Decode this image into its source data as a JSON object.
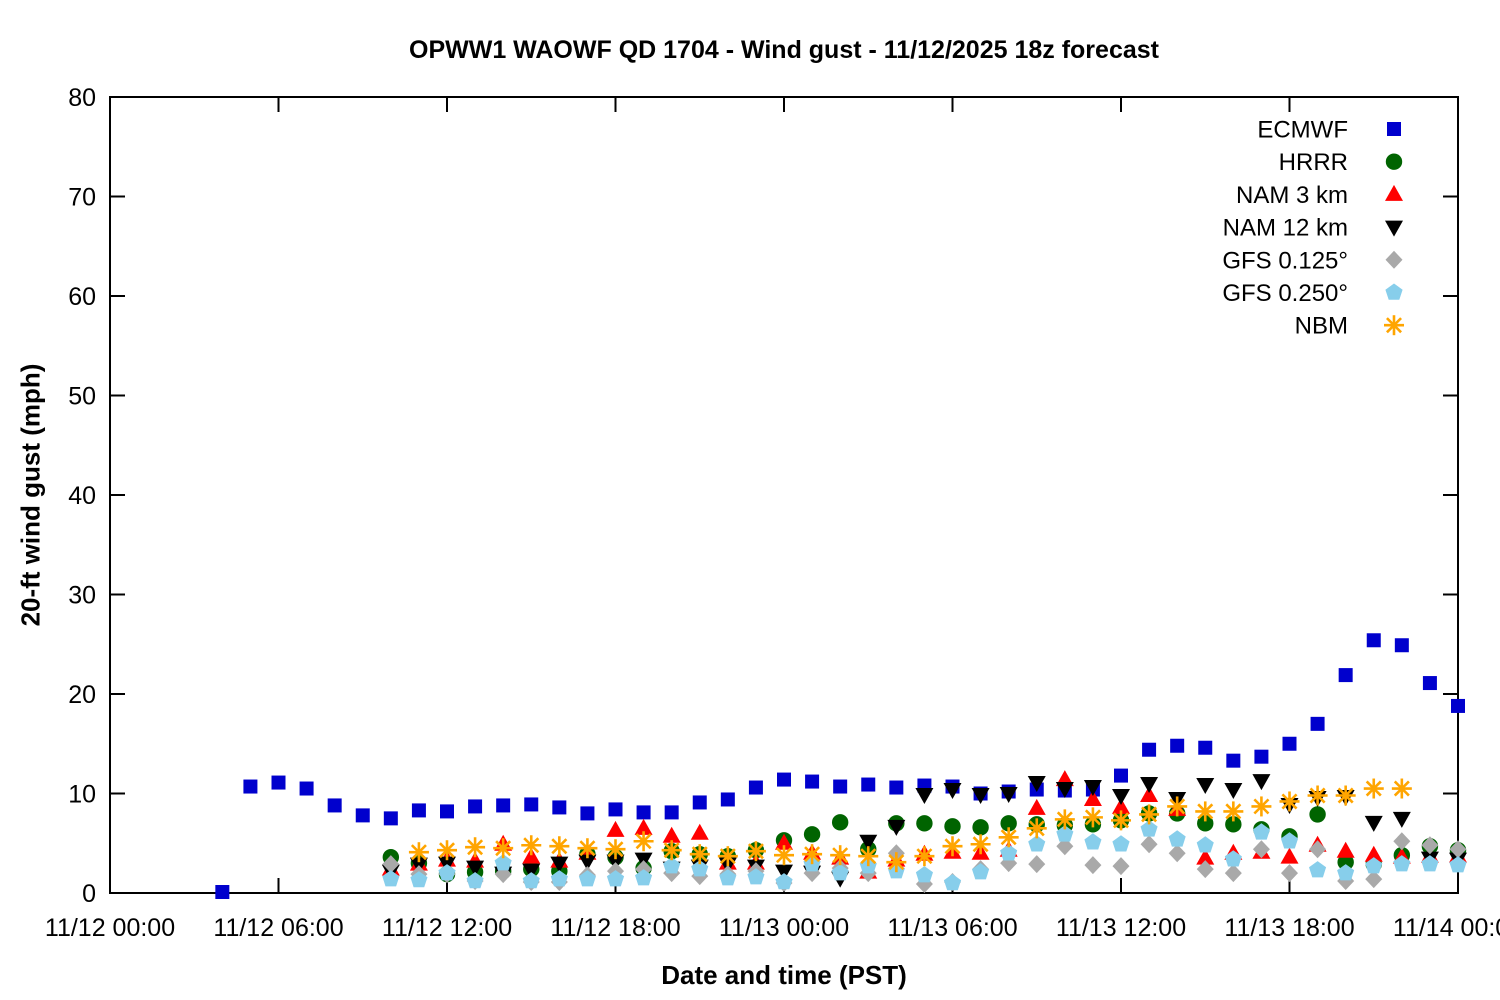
{
  "page": {
    "title": "OPWW1 WAOWF QD 1704 - Wind gust - 11/12/2025 18z forecast"
  },
  "chart_data": {
    "type": "scatter",
    "title": "OPWW1 WAOWF QD 1704 - Wind gust - 11/12/2025 18z forecast",
    "xlabel": "Date and time (PST)",
    "ylabel": "20-ft wind gust (mph)",
    "grid": false,
    "legend": {
      "position": "top-right-inside"
    },
    "x_axis": {
      "unit": "hours after 11/12 00:00 PST",
      "start_hour": 0,
      "end_hour": 48,
      "tick_interval_hours": 6,
      "tick_labels": [
        "11/12 00:00",
        "11/12 06:00",
        "11/12 12:00",
        "11/12 18:00",
        "11/13 00:00",
        "11/13 06:00",
        "11/13 12:00",
        "11/13 18:00",
        "11/14 00:00"
      ]
    },
    "y_axis": {
      "min": 0,
      "max": 80,
      "tick_step": 10,
      "tick_labels": [
        "0",
        "10",
        "20",
        "30",
        "40",
        "50",
        "60",
        "70",
        "80"
      ]
    },
    "series": [
      {
        "name": "ECMWF",
        "marker": "square",
        "color": "#0000cd",
        "points": [
          [
            4,
            0.1
          ],
          [
            5,
            10.7
          ],
          [
            6,
            11.1
          ],
          [
            7,
            10.5
          ],
          [
            8,
            8.8
          ],
          [
            9,
            7.8
          ],
          [
            10,
            7.5
          ],
          [
            11,
            8.3
          ],
          [
            12,
            8.2
          ],
          [
            13,
            8.7
          ],
          [
            14,
            8.8
          ],
          [
            15,
            8.9
          ],
          [
            16,
            8.6
          ],
          [
            17,
            8.0
          ],
          [
            18,
            8.4
          ],
          [
            19,
            8.1
          ],
          [
            20,
            8.1
          ],
          [
            21,
            9.1
          ],
          [
            22,
            9.4
          ],
          [
            23,
            10.6
          ],
          [
            24,
            11.4
          ],
          [
            25,
            11.2
          ],
          [
            26,
            10.7
          ],
          [
            27,
            10.9
          ],
          [
            28,
            10.6
          ],
          [
            29,
            10.8
          ],
          [
            30,
            10.7
          ],
          [
            31,
            10.0
          ],
          [
            32,
            10.2
          ],
          [
            33,
            10.4
          ],
          [
            34,
            10.3
          ],
          [
            35,
            10.4
          ],
          [
            36,
            11.8
          ],
          [
            37,
            14.4
          ],
          [
            38,
            14.8
          ],
          [
            39,
            14.6
          ],
          [
            40,
            13.3
          ],
          [
            41,
            13.7
          ],
          [
            42,
            15.0
          ],
          [
            43,
            17.0
          ],
          [
            44,
            21.9
          ],
          [
            45,
            25.4
          ],
          [
            46,
            24.9
          ],
          [
            47,
            21.1
          ],
          [
            48,
            18.8
          ]
        ]
      },
      {
        "name": "HRRR",
        "marker": "circle",
        "color": "#006400",
        "points": [
          [
            10,
            3.6
          ],
          [
            11,
            3.0
          ],
          [
            12,
            1.9
          ],
          [
            13,
            2.1
          ],
          [
            14,
            2.2
          ],
          [
            15,
            2.4
          ],
          [
            16,
            2.2
          ],
          [
            17,
            3.9
          ],
          [
            18,
            3.6
          ],
          [
            19,
            2.5
          ],
          [
            20,
            4.2
          ],
          [
            21,
            3.9
          ],
          [
            22,
            3.7
          ],
          [
            23,
            4.3
          ],
          [
            24,
            5.3
          ],
          [
            25,
            5.9
          ],
          [
            26,
            7.1
          ],
          [
            27,
            4.4
          ],
          [
            28,
            7.0
          ],
          [
            29,
            7.0
          ],
          [
            30,
            6.7
          ],
          [
            31,
            6.6
          ],
          [
            32,
            7.0
          ],
          [
            33,
            6.9
          ],
          [
            34,
            6.8
          ],
          [
            35,
            6.9
          ],
          [
            36,
            7.3
          ],
          [
            37,
            8.0
          ],
          [
            38,
            8.0
          ],
          [
            39,
            7.0
          ],
          [
            40,
            6.9
          ],
          [
            41,
            6.4
          ],
          [
            42,
            5.7
          ],
          [
            43,
            7.9
          ],
          [
            44,
            3.1
          ],
          [
            45,
            2.9
          ],
          [
            46,
            3.8
          ],
          [
            47,
            4.7
          ],
          [
            48,
            4.3
          ]
        ]
      },
      {
        "name": "NAM 3 km",
        "marker": "triangle-up",
        "color": "#ff0000",
        "points": [
          [
            10,
            2.4
          ],
          [
            11,
            2.9
          ],
          [
            12,
            3.3
          ],
          [
            13,
            3.2
          ],
          [
            14,
            4.9
          ],
          [
            15,
            3.6
          ],
          [
            16,
            3.2
          ],
          [
            17,
            4.0
          ],
          [
            18,
            6.3
          ],
          [
            19,
            6.5
          ],
          [
            20,
            5.7
          ],
          [
            21,
            6.0
          ],
          [
            22,
            3.0
          ],
          [
            23,
            3.0
          ],
          [
            24,
            5.0
          ],
          [
            25,
            4.0
          ],
          [
            26,
            3.5
          ],
          [
            27,
            2.1
          ],
          [
            28,
            3.3
          ],
          [
            29,
            3.9
          ],
          [
            30,
            4.1
          ],
          [
            31,
            4.0
          ],
          [
            32,
            4.3
          ],
          [
            33,
            8.5
          ],
          [
            34,
            11.4
          ],
          [
            35,
            9.4
          ],
          [
            36,
            8.6
          ],
          [
            37,
            9.8
          ],
          [
            38,
            8.4
          ],
          [
            39,
            3.5
          ],
          [
            40,
            4.0
          ],
          [
            41,
            4.1
          ],
          [
            42,
            3.6
          ],
          [
            43,
            4.8
          ],
          [
            44,
            4.2
          ],
          [
            45,
            3.8
          ],
          [
            46,
            3.6
          ],
          [
            47,
            3.7
          ],
          [
            48,
            3.7
          ]
        ]
      },
      {
        "name": "NAM 12 km",
        "marker": "triangle-down",
        "color": "#000000",
        "points": [
          [
            10,
            2.2
          ],
          [
            11,
            2.9
          ],
          [
            12,
            3.0
          ],
          [
            13,
            2.6
          ],
          [
            14,
            2.0
          ],
          [
            15,
            2.3
          ],
          [
            16,
            3.0
          ],
          [
            17,
            3.2
          ],
          [
            18,
            3.2
          ],
          [
            19,
            3.4
          ],
          [
            20,
            2.5
          ],
          [
            21,
            2.7
          ],
          [
            22,
            2.9
          ],
          [
            23,
            2.7
          ],
          [
            24,
            2.2
          ],
          [
            25,
            2.1
          ],
          [
            26,
            1.5
          ],
          [
            27,
            5.2
          ],
          [
            28,
            6.7
          ],
          [
            29,
            9.9
          ],
          [
            30,
            10.4
          ],
          [
            31,
            9.9
          ],
          [
            32,
            10.0
          ],
          [
            33,
            11.1
          ],
          [
            34,
            10.5
          ],
          [
            35,
            10.7
          ],
          [
            36,
            9.8
          ],
          [
            37,
            11.0
          ],
          [
            38,
            9.5
          ],
          [
            39,
            10.9
          ],
          [
            40,
            10.4
          ],
          [
            41,
            11.3
          ],
          [
            42,
            8.9
          ],
          [
            43,
            9.6
          ],
          [
            44,
            9.7
          ],
          [
            45,
            7.1
          ],
          [
            46,
            7.5
          ],
          [
            47,
            3.5
          ],
          [
            48,
            3.4
          ]
        ]
      },
      {
        "name": "GFS 0.125°",
        "marker": "diamond",
        "color": "#a9a9a9",
        "points": [
          [
            10,
            2.9
          ],
          [
            11,
            1.9
          ],
          [
            12,
            1.9
          ],
          [
            13,
            1.2
          ],
          [
            14,
            1.9
          ],
          [
            15,
            1.1
          ],
          [
            16,
            1.1
          ],
          [
            17,
            1.8
          ],
          [
            18,
            2.2
          ],
          [
            19,
            2.4
          ],
          [
            20,
            2.0
          ],
          [
            21,
            1.7
          ],
          [
            22,
            1.9
          ],
          [
            23,
            2.2
          ],
          [
            24,
            1.0
          ],
          [
            25,
            2.0
          ],
          [
            26,
            2.5
          ],
          [
            27,
            2.0
          ],
          [
            28,
            4.0
          ],
          [
            29,
            0.9
          ],
          [
            30,
            1.1
          ],
          [
            31,
            2.4
          ],
          [
            32,
            3.0
          ],
          [
            33,
            2.9
          ],
          [
            34,
            4.7
          ],
          [
            35,
            2.8
          ],
          [
            36,
            2.7
          ],
          [
            37,
            4.9
          ],
          [
            38,
            4.0
          ],
          [
            39,
            2.4
          ],
          [
            40,
            2.0
          ],
          [
            41,
            4.4
          ],
          [
            42,
            2.0
          ],
          [
            43,
            4.4
          ],
          [
            44,
            1.2
          ],
          [
            45,
            1.4
          ],
          [
            46,
            5.2
          ],
          [
            47,
            4.8
          ],
          [
            48,
            4.4
          ]
        ]
      },
      {
        "name": "GFS 0.250°",
        "marker": "pentagon",
        "color": "#87ceeb",
        "points": [
          [
            10,
            1.4
          ],
          [
            11,
            1.3
          ],
          [
            12,
            2.0
          ],
          [
            13,
            1.2
          ],
          [
            14,
            3.0
          ],
          [
            15,
            1.2
          ],
          [
            16,
            1.4
          ],
          [
            17,
            1.4
          ],
          [
            18,
            1.4
          ],
          [
            19,
            1.5
          ],
          [
            20,
            2.7
          ],
          [
            21,
            2.4
          ],
          [
            22,
            1.5
          ],
          [
            23,
            1.6
          ],
          [
            24,
            1.1
          ],
          [
            25,
            2.9
          ],
          [
            26,
            2.0
          ],
          [
            27,
            2.7
          ],
          [
            28,
            2.2
          ],
          [
            29,
            1.8
          ],
          [
            30,
            1.0
          ],
          [
            31,
            2.1
          ],
          [
            32,
            4.0
          ],
          [
            33,
            4.9
          ],
          [
            34,
            5.9
          ],
          [
            35,
            5.1
          ],
          [
            36,
            4.9
          ],
          [
            37,
            6.4
          ],
          [
            38,
            5.4
          ],
          [
            39,
            4.8
          ],
          [
            40,
            3.4
          ],
          [
            41,
            6.1
          ],
          [
            42,
            5.2
          ],
          [
            43,
            2.3
          ],
          [
            44,
            2.0
          ],
          [
            45,
            2.7
          ],
          [
            46,
            2.9
          ],
          [
            47,
            2.9
          ],
          [
            48,
            2.8
          ]
        ]
      },
      {
        "name": "NBM",
        "marker": "asterisk",
        "color": "#ffa500",
        "points": [
          [
            11,
            4.1
          ],
          [
            12,
            4.3
          ],
          [
            13,
            4.6
          ],
          [
            14,
            4.5
          ],
          [
            15,
            4.8
          ],
          [
            16,
            4.7
          ],
          [
            17,
            4.5
          ],
          [
            18,
            4.4
          ],
          [
            19,
            5.2
          ],
          [
            20,
            4.3
          ],
          [
            21,
            3.9
          ],
          [
            22,
            3.7
          ],
          [
            23,
            4.2
          ],
          [
            24,
            3.8
          ],
          [
            25,
            3.9
          ],
          [
            26,
            3.8
          ],
          [
            27,
            3.7
          ],
          [
            28,
            3.1
          ],
          [
            29,
            3.7
          ],
          [
            30,
            4.7
          ],
          [
            31,
            4.9
          ],
          [
            32,
            5.6
          ],
          [
            33,
            6.5
          ],
          [
            34,
            7.4
          ],
          [
            35,
            7.6
          ],
          [
            36,
            7.3
          ],
          [
            37,
            7.9
          ],
          [
            38,
            8.7
          ],
          [
            39,
            8.2
          ],
          [
            40,
            8.2
          ],
          [
            41,
            8.7
          ],
          [
            42,
            9.2
          ],
          [
            43,
            9.8
          ],
          [
            44,
            9.8
          ],
          [
            45,
            10.5
          ],
          [
            46,
            10.5
          ]
        ]
      }
    ]
  }
}
